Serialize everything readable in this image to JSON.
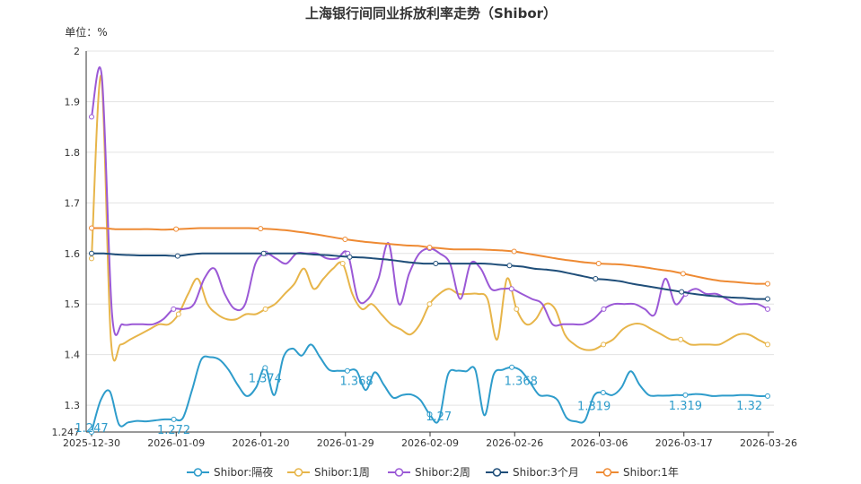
{
  "chart_data": {
    "type": "line",
    "title": "上海银行间同业拆放利率走势（Shibor）",
    "unit_label": "单位：%",
    "y_ticks": [
      "1.247",
      "1.3",
      "1.4",
      "1.5",
      "1.6",
      "1.7",
      "1.8",
      "1.9",
      "2"
    ],
    "ylim": [
      1.247,
      2.0
    ],
    "x_tick_labels": [
      "2025-12-30",
      "2026-01-09",
      "2026-01-20",
      "2026-01-29",
      "2026-02-09",
      "2026-02-26",
      "2026-03-06",
      "2026-03-17",
      "2026-03-26"
    ],
    "grid": "horizontal",
    "legend_position": "bottom",
    "series": [
      {
        "name": "Shibor:隔夜",
        "color": "#2e9ccb",
        "values": [
          1.247,
          1.31,
          1.327,
          1.262,
          1.266,
          1.269,
          1.268,
          1.27,
          1.272,
          1.272,
          1.275,
          1.33,
          1.39,
          1.395,
          1.39,
          1.37,
          1.34,
          1.318,
          1.335,
          1.374,
          1.32,
          1.395,
          1.412,
          1.398,
          1.42,
          1.395,
          1.37,
          1.368,
          1.368,
          1.368,
          1.33,
          1.365,
          1.34,
          1.315,
          1.32,
          1.321,
          1.31,
          1.282,
          1.27,
          1.36,
          1.368,
          1.367,
          1.37,
          1.28,
          1.36,
          1.37,
          1.375,
          1.368,
          1.345,
          1.32,
          1.319,
          1.31,
          1.275,
          1.268,
          1.27,
          1.319,
          1.325,
          1.32,
          1.335,
          1.367,
          1.34,
          1.32,
          1.319,
          1.319,
          1.32,
          1.32,
          1.322,
          1.321,
          1.318,
          1.319,
          1.319,
          1.32,
          1.32,
          1.318,
          1.318
        ],
        "data_labels": [
          {
            "index": 0,
            "text": "1.247"
          },
          {
            "index": 9,
            "text": "1.272"
          },
          {
            "index": 19,
            "text": "1.374"
          },
          {
            "index": 29,
            "text": "1.368"
          },
          {
            "index": 38,
            "text": "1.27"
          },
          {
            "index": 47,
            "text": "1.368"
          },
          {
            "index": 55,
            "text": "1.319"
          },
          {
            "index": 65,
            "text": "1.319"
          },
          {
            "index": 72,
            "text": "1.32"
          }
        ]
      },
      {
        "name": "Shibor:1周",
        "color": "#e7b54a",
        "values": [
          1.59,
          1.95,
          1.43,
          1.42,
          1.43,
          1.44,
          1.45,
          1.46,
          1.46,
          1.48,
          1.52,
          1.55,
          1.5,
          1.48,
          1.47,
          1.47,
          1.48,
          1.48,
          1.49,
          1.5,
          1.52,
          1.54,
          1.57,
          1.53,
          1.55,
          1.57,
          1.58,
          1.52,
          1.49,
          1.5,
          1.48,
          1.46,
          1.45,
          1.44,
          1.46,
          1.5,
          1.52,
          1.53,
          1.52,
          1.52,
          1.52,
          1.51,
          1.43,
          1.55,
          1.49,
          1.46,
          1.47,
          1.5,
          1.49,
          1.44,
          1.42,
          1.41,
          1.41,
          1.42,
          1.43,
          1.45,
          1.46,
          1.46,
          1.45,
          1.44,
          1.43,
          1.43,
          1.42,
          1.42,
          1.42,
          1.42,
          1.43,
          1.44,
          1.44,
          1.43,
          1.42
        ],
        "data_labels": []
      },
      {
        "name": "Shibor:2周",
        "color": "#9b59d6",
        "values": [
          1.87,
          1.95,
          1.48,
          1.46,
          1.46,
          1.46,
          1.46,
          1.47,
          1.49,
          1.49,
          1.5,
          1.55,
          1.57,
          1.52,
          1.49,
          1.5,
          1.58,
          1.6,
          1.59,
          1.58,
          1.6,
          1.6,
          1.6,
          1.59,
          1.59,
          1.6,
          1.51,
          1.51,
          1.55,
          1.62,
          1.5,
          1.56,
          1.6,
          1.61,
          1.6,
          1.58,
          1.51,
          1.58,
          1.57,
          1.53,
          1.53,
          1.53,
          1.52,
          1.51,
          1.5,
          1.46,
          1.46,
          1.46,
          1.46,
          1.47,
          1.49,
          1.5,
          1.5,
          1.5,
          1.49,
          1.48,
          1.55,
          1.5,
          1.52,
          1.53,
          1.52,
          1.52,
          1.51,
          1.5,
          1.5,
          1.5,
          1.49
        ],
        "data_labels": []
      },
      {
        "name": "Shibor:3个月",
        "color": "#1f4e79",
        "values": [
          1.6,
          1.6,
          1.598,
          1.597,
          1.596,
          1.596,
          1.596,
          1.595,
          1.598,
          1.6,
          1.6,
          1.6,
          1.6,
          1.6,
          1.6,
          1.6,
          1.6,
          1.6,
          1.598,
          1.597,
          1.595,
          1.593,
          1.592,
          1.59,
          1.588,
          1.585,
          1.582,
          1.58,
          1.58,
          1.58,
          1.58,
          1.58,
          1.58,
          1.578,
          1.576,
          1.574,
          1.57,
          1.568,
          1.565,
          1.56,
          1.555,
          1.55,
          1.548,
          1.545,
          1.54,
          1.536,
          1.532,
          1.528,
          1.524,
          1.52,
          1.517,
          1.515,
          1.513,
          1.512,
          1.51,
          1.51
        ],
        "data_labels": []
      },
      {
        "name": "Shibor:1年",
        "color": "#ee8a33",
        "values": [
          1.65,
          1.65,
          1.648,
          1.648,
          1.648,
          1.648,
          1.647,
          1.648,
          1.649,
          1.65,
          1.65,
          1.65,
          1.65,
          1.65,
          1.649,
          1.648,
          1.646,
          1.643,
          1.64,
          1.636,
          1.632,
          1.628,
          1.625,
          1.622,
          1.62,
          1.618,
          1.616,
          1.615,
          1.612,
          1.61,
          1.608,
          1.608,
          1.608,
          1.607,
          1.606,
          1.604,
          1.6,
          1.596,
          1.592,
          1.588,
          1.585,
          1.582,
          1.58,
          1.579,
          1.578,
          1.575,
          1.572,
          1.568,
          1.565,
          1.56,
          1.555,
          1.55,
          1.546,
          1.544,
          1.542,
          1.54,
          1.54
        ],
        "data_labels": []
      }
    ]
  }
}
